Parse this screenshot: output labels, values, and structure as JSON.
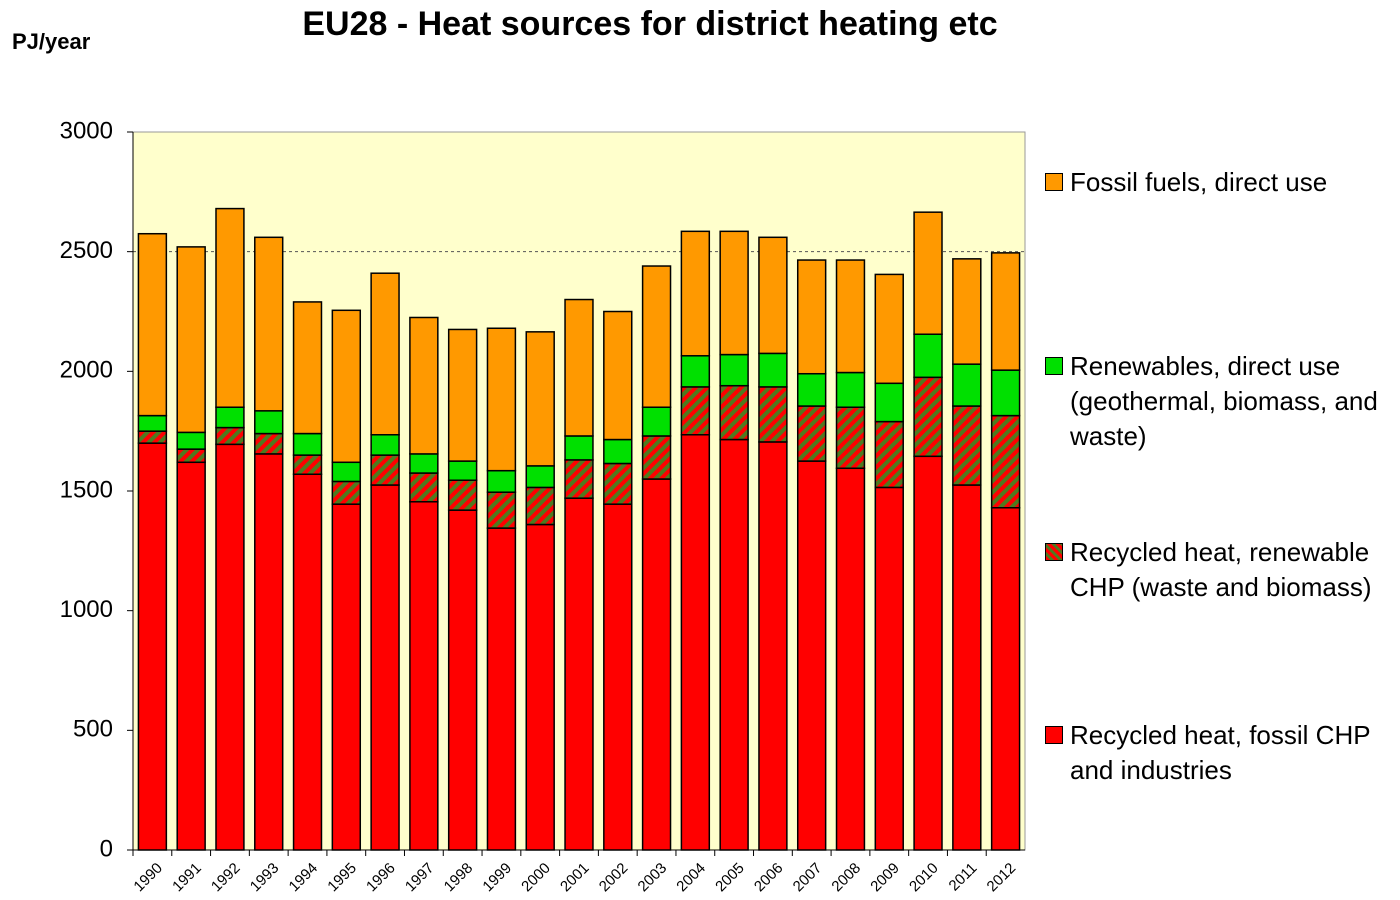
{
  "chart_data": {
    "type": "stacked_bar",
    "title": "EU28 - Heat sources for district heating etc",
    "y_label": "PJ/year",
    "categories": [
      "1990",
      "1991",
      "1992",
      "1993",
      "1994",
      "1995",
      "1996",
      "1997",
      "1998",
      "1999",
      "2000",
      "2001",
      "2002",
      "2003",
      "2004",
      "2005",
      "2006",
      "2007",
      "2008",
      "2009",
      "2010",
      "2011",
      "2012"
    ],
    "series": [
      {
        "name": "Recycled heat, fossil CHP and industries",
        "color": "#ff0000",
        "values": [
          1700,
          1620,
          1695,
          1655,
          1570,
          1445,
          1525,
          1455,
          1420,
          1345,
          1360,
          1470,
          1445,
          1550,
          1735,
          1715,
          1705,
          1625,
          1595,
          1515,
          1645,
          1525,
          1430
        ]
      },
      {
        "name": "Recycled heat, renewable CHP (waste and biomass)",
        "color": "#4f7a1f",
        "hatch": true,
        "values": [
          50,
          55,
          70,
          85,
          80,
          95,
          125,
          120,
          125,
          150,
          155,
          160,
          170,
          180,
          200,
          225,
          230,
          230,
          255,
          275,
          330,
          330,
          385
        ]
      },
      {
        "name": "Renewables, direct use (geothermal, biomass, and waste)",
        "color": "#00e000",
        "values": [
          65,
          70,
          85,
          95,
          90,
          80,
          85,
          80,
          80,
          90,
          90,
          100,
          100,
          120,
          130,
          130,
          140,
          135,
          145,
          160,
          180,
          175,
          190
        ]
      },
      {
        "name": "Fossil fuels, direct use",
        "color": "#ff9900",
        "values": [
          760,
          775,
          830,
          725,
          550,
          635,
          675,
          570,
          550,
          595,
          560,
          570,
          535,
          590,
          520,
          515,
          485,
          475,
          470,
          455,
          510,
          440,
          490
        ]
      }
    ],
    "ylim": [
      0,
      3000
    ],
    "yticks": [
      0,
      500,
      1000,
      1500,
      2000,
      2500,
      3000
    ],
    "grid": false,
    "reference_lines": [
      2500
    ],
    "plot_background": "#ffffcc",
    "legend": "right"
  }
}
